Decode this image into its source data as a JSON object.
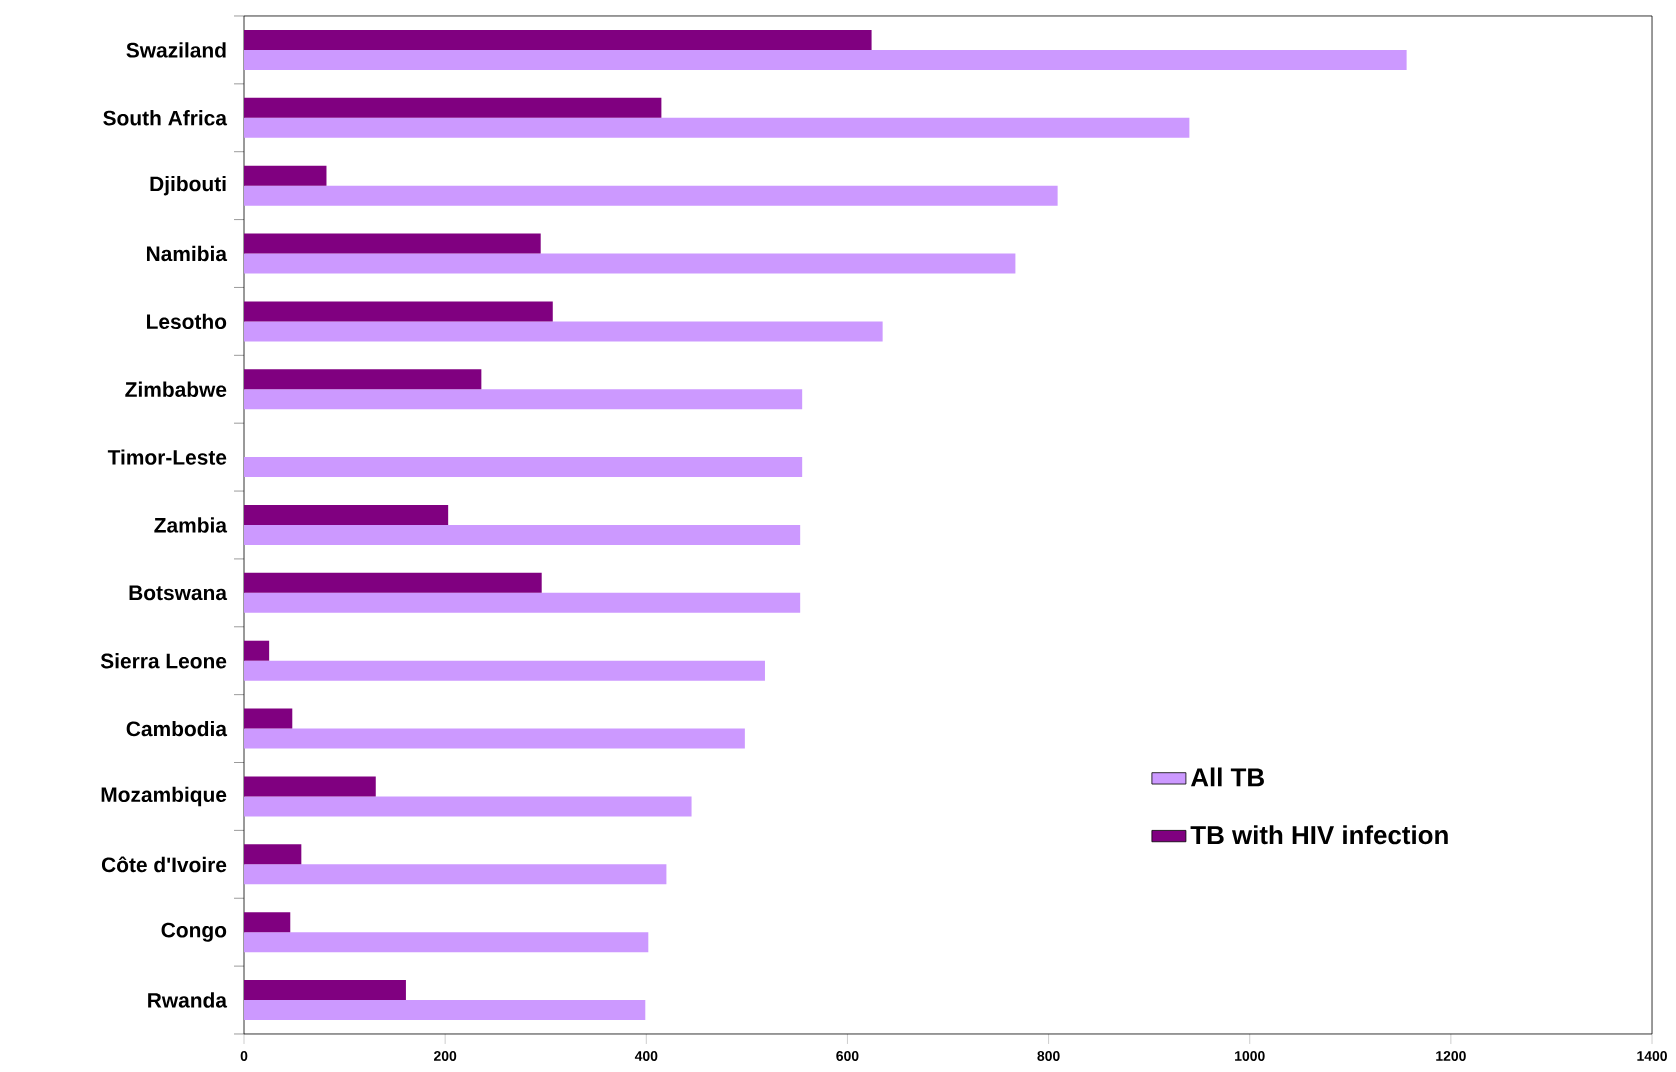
{
  "chart_data": {
    "type": "bar",
    "orientation": "horizontal",
    "categories": [
      "Swaziland",
      "South Africa",
      "Djibouti",
      "Namibia",
      "Lesotho",
      "Zimbabwe",
      "Timor-Leste",
      "Zambia",
      "Botswana",
      "Sierra Leone",
      "Cambodia",
      "Mozambique",
      "Côte d'Ivoire",
      "Congo",
      "Rwanda"
    ],
    "series": [
      {
        "name": "All TB",
        "color": "#cc99ff",
        "values": [
          1156,
          940,
          809,
          767,
          635,
          555,
          555,
          553,
          553,
          518,
          498,
          445,
          420,
          402,
          399
        ]
      },
      {
        "name": "TB with HIV infection",
        "color": "#800080",
        "values": [
          624,
          415,
          82,
          295,
          307,
          236,
          null,
          203,
          296,
          25,
          48,
          131,
          57,
          46,
          161
        ]
      }
    ],
    "xlim": [
      0,
      1400
    ],
    "xticks": [
      0,
      200,
      400,
      600,
      800,
      1000,
      1200,
      1400
    ],
    "grid": false,
    "legend": "right"
  }
}
